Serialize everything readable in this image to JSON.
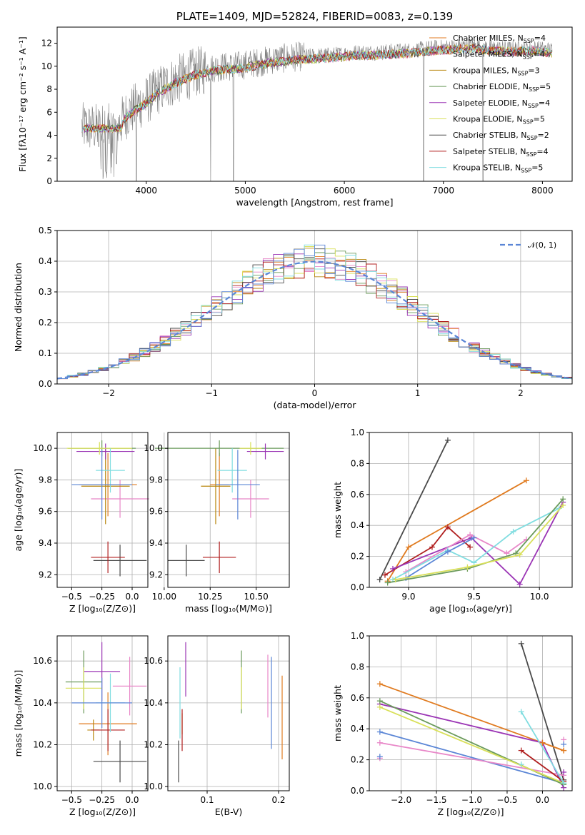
{
  "colors": {
    "Chabrier MILES": "#e07b20",
    "Salpeter MILES": "#e887c8",
    "Kroupa MILES": "#b8860b",
    "Chabrier ELODIE": "#6a9a5a",
    "Salpeter ELODIE": "#9b35b5",
    "Kroupa ELODIE": "#d9e05a",
    "Chabrier STELIB": "#4a4a4a",
    "Salpeter STELIB": "#b01e1e",
    "Kroupa STELIB": "#80dde0",
    "extra_blue": "#5b86d6",
    "observed": "#808080",
    "normal": "#5b86d6"
  },
  "chart_data": [
    {
      "id": "spectrum",
      "type": "line",
      "title": "PLATE=1409, MJD=52824, FIBERID=0083, z=0.139",
      "xlabel": "wavelength [Angstrom, rest frame]",
      "ylabel": "Flux [fλ10⁻¹⁷ erg cm⁻² s⁻¹ A⁻¹]",
      "xlim": [
        3100,
        8300
      ],
      "ylim": [
        0,
        13.4
      ],
      "xticks": [
        4000,
        5000,
        6000,
        7000,
        8000
      ],
      "yticks": [
        0,
        2,
        4,
        6,
        8,
        10,
        12
      ],
      "legend": [
        {
          "name": "Chabrier MILES",
          "n": "4"
        },
        {
          "name": "Salpeter MILES",
          "n": "4"
        },
        {
          "name": "Kroupa MILES",
          "n": "3"
        },
        {
          "name": "Chabrier ELODIE",
          "n": "5"
        },
        {
          "name": "Salpeter ELODIE",
          "n": "4"
        },
        {
          "name": "Kroupa ELODIE",
          "n": "5"
        },
        {
          "name": "Chabrier STELIB",
          "n": "2"
        },
        {
          "name": "Salpeter STELIB",
          "n": "4"
        },
        {
          "name": "Kroupa STELIB",
          "n": "5"
        }
      ],
      "legend_placement": "right",
      "continuum": [
        [
          3350,
          4.7
        ],
        [
          3550,
          4.6
        ],
        [
          3700,
          4.6
        ],
        [
          3800,
          5.8
        ],
        [
          3900,
          6.5
        ],
        [
          4000,
          7.0
        ],
        [
          4100,
          7.8
        ],
        [
          4300,
          8.8
        ],
        [
          4500,
          9.5
        ],
        [
          4700,
          9.9
        ],
        [
          4900,
          10.0
        ],
        [
          5100,
          10.3
        ],
        [
          5300,
          10.6
        ],
        [
          5500,
          10.8
        ],
        [
          5700,
          10.9
        ],
        [
          5900,
          11.0
        ],
        [
          6100,
          11.2
        ],
        [
          6300,
          11.2
        ],
        [
          6500,
          11.3
        ],
        [
          6700,
          11.4
        ],
        [
          6900,
          11.6
        ],
        [
          7100,
          11.7
        ],
        [
          7300,
          11.8
        ],
        [
          7500,
          11.6
        ],
        [
          7700,
          11.5
        ],
        [
          7900,
          11.6
        ],
        [
          8100,
          11.4
        ]
      ],
      "absorption_lines": [
        [
          3520,
          3.0
        ],
        [
          3600,
          0.3
        ],
        [
          3700,
          1.5
        ],
        [
          3900,
          0.0
        ],
        [
          4650,
          0.0
        ],
        [
          4880,
          0.0
        ],
        [
          6800,
          0.0
        ],
        [
          7400,
          0.0
        ]
      ]
    },
    {
      "id": "residuals",
      "type": "histogram",
      "xlabel": "(data-model)/error",
      "ylabel": "Normed distribution",
      "xlim": [
        -2.5,
        2.5
      ],
      "ylim": [
        0,
        0.5
      ],
      "xticks": [
        -2,
        -1,
        0,
        1,
        2
      ],
      "yticks": [
        0.0,
        0.1,
        0.2,
        0.3,
        0.4,
        0.5
      ],
      "legend": "𝒩(0, 1)",
      "legend_placement": "top-right",
      "bin_width": 0.1
    },
    {
      "id": "age_vs_Z",
      "type": "errorbar",
      "xlabel": "Z [log₁₀(Z/Z⊙)]",
      "ylabel": "age  [log₁₀(age/yr)]",
      "xlim": [
        -0.62,
        0.13
      ],
      "ylim": [
        9.12,
        10.1
      ],
      "xticks": [
        -0.5,
        -0.25,
        0.0
      ],
      "yticks": [
        9.2,
        9.4,
        9.6,
        9.8,
        10.0
      ],
      "points": [
        {
          "c": "Chabrier MILES",
          "x": -0.2,
          "xe": 0.24,
          "y": 9.77,
          "ye": 0.2
        },
        {
          "c": "Salpeter MILES",
          "x": -0.1,
          "xe": 0.24,
          "y": 9.68,
          "ye": 0.12
        },
        {
          "c": "Kroupa MILES",
          "x": -0.22,
          "xe": 0.2,
          "y": 9.76,
          "ye": 0.24
        },
        {
          "c": "Chabrier ELODIE",
          "x": -0.25,
          "xe": 0.28,
          "y": 10.0,
          "ye": 0.05
        },
        {
          "c": "Salpeter ELODIE",
          "x": -0.22,
          "xe": 0.24,
          "y": 9.98,
          "ye": 0.05
        },
        {
          "c": "Kroupa ELODIE",
          "x": -0.27,
          "xe": 0.27,
          "y": 10.0,
          "ye": 0.04
        },
        {
          "c": "Chabrier STELIB",
          "x": -0.1,
          "xe": 0.22,
          "y": 9.29,
          "ye": 0.1
        },
        {
          "c": "Salpeter STELIB",
          "x": -0.2,
          "xe": 0.14,
          "y": 9.31,
          "ye": 0.1
        },
        {
          "c": "Kroupa STELIB",
          "x": -0.18,
          "xe": 0.12,
          "y": 9.86,
          "ye": 0.14
        },
        {
          "c": "extra_blue",
          "x": -0.25,
          "xe": 0.25,
          "y": 9.77,
          "ye": 0.22
        }
      ]
    },
    {
      "id": "age_vs_mass",
      "type": "errorbar",
      "xlabel": "mass [log₁₀(M/M⊙)]",
      "ylabel": "",
      "xlim": [
        10.02,
        10.68
      ],
      "ylim": [
        9.12,
        10.1
      ],
      "xticks": [
        10.0,
        10.25,
        10.5
      ],
      "yticks": [
        9.2,
        9.4,
        9.6,
        9.8,
        10.0
      ],
      "points": [
        {
          "c": "Chabrier MILES",
          "x": 10.3,
          "xe": 0.05,
          "y": 9.77,
          "ye": 0.2
        },
        {
          "c": "Salpeter MILES",
          "x": 10.47,
          "xe": 0.1,
          "y": 9.68,
          "ye": 0.12
        },
        {
          "c": "Kroupa MILES",
          "x": 10.28,
          "xe": 0.08,
          "y": 9.76,
          "ye": 0.24
        },
        {
          "c": "Chabrier ELODIE",
          "x": 10.3,
          "xe": 0.35,
          "y": 10.0,
          "ye": 0.05
        },
        {
          "c": "Salpeter ELODIE",
          "x": 10.55,
          "xe": 0.1,
          "y": 9.98,
          "ye": 0.05
        },
        {
          "c": "Kroupa ELODIE",
          "x": 10.47,
          "xe": 0.06,
          "y": 10.0,
          "ye": 0.04
        },
        {
          "c": "Chabrier STELIB",
          "x": 10.12,
          "xe": 0.1,
          "y": 9.29,
          "ye": 0.1
        },
        {
          "c": "Salpeter STELIB",
          "x": 10.3,
          "xe": 0.09,
          "y": 9.31,
          "ye": 0.1
        },
        {
          "c": "Kroupa STELIB",
          "x": 10.37,
          "xe": 0.08,
          "y": 9.86,
          "ye": 0.14
        },
        {
          "c": "extra_blue",
          "x": 10.4,
          "xe": 0.12,
          "y": 9.77,
          "ye": 0.22
        }
      ]
    },
    {
      "id": "weight_vs_age",
      "type": "line",
      "xlabel": "age  [log₁₀(age/yr)]",
      "ylabel": "mass weight",
      "xlim": [
        8.7,
        10.25
      ],
      "ylim": [
        0,
        1.0
      ],
      "xticks": [
        9.0,
        9.5,
        10.0
      ],
      "yticks": [
        0.0,
        0.2,
        0.4,
        0.6,
        0.8,
        1.0
      ],
      "series": [
        {
          "c": "Chabrier STELIB",
          "x": [
            8.78,
            9.3
          ],
          "y": [
            0.05,
            0.95
          ]
        },
        {
          "c": "Chabrier MILES",
          "x": [
            8.84,
            9.0,
            9.9
          ],
          "y": [
            0.04,
            0.26,
            0.69
          ]
        },
        {
          "c": "Salpeter STELIB",
          "x": [
            8.82,
            9.18,
            9.3,
            9.47
          ],
          "y": [
            0.08,
            0.26,
            0.39,
            0.26
          ]
        },
        {
          "c": "Salpeter ELODIE",
          "x": [
            8.88,
            9.48,
            9.85,
            10.18
          ],
          "y": [
            0.12,
            0.32,
            0.02,
            0.55
          ]
        },
        {
          "c": "Salpeter MILES",
          "x": [
            8.98,
            9.47,
            9.75,
            9.9
          ],
          "y": [
            0.1,
            0.34,
            0.22,
            0.31
          ]
        },
        {
          "c": "Kroupa STELIB",
          "x": [
            8.88,
            9.3,
            9.5,
            9.8,
            10.15
          ],
          "y": [
            0.05,
            0.24,
            0.16,
            0.36,
            0.51
          ]
        },
        {
          "c": "extra_blue",
          "x": [
            8.98,
            9.3,
            9.5
          ],
          "y": [
            0.06,
            0.23,
            0.32
          ]
        },
        {
          "c": "Chabrier ELODIE",
          "x": [
            8.84,
            9.45,
            9.82,
            10.18
          ],
          "y": [
            0.03,
            0.12,
            0.22,
            0.57
          ]
        },
        {
          "c": "Kroupa ELODIE",
          "x": [
            8.9,
            9.45,
            9.85,
            10.18
          ],
          "y": [
            0.05,
            0.13,
            0.21,
            0.53
          ]
        }
      ]
    },
    {
      "id": "mass_vs_Z",
      "type": "errorbar",
      "xlabel": "Z [log₁₀(Z/Z⊙)]",
      "ylabel": "mass [log₁₀(M/M⊙)]",
      "xlim": [
        -0.62,
        0.13
      ],
      "ylim": [
        9.98,
        10.72
      ],
      "xticks": [
        -0.5,
        -0.25,
        0.0
      ],
      "yticks": [
        10.0,
        10.2,
        10.4,
        10.6
      ],
      "points": [
        {
          "c": "Chabrier MILES",
          "x": -0.2,
          "xe": 0.24,
          "y": 10.3,
          "ye": 0.15
        },
        {
          "c": "Salpeter MILES",
          "x": -0.02,
          "xe": 0.14,
          "y": 10.48,
          "ye": 0.14
        },
        {
          "c": "Kroupa MILES",
          "x": -0.32,
          "xe": 0.05,
          "y": 10.27,
          "ye": 0.05
        },
        {
          "c": "Chabrier ELODIE",
          "x": -0.4,
          "xe": 0.15,
          "y": 10.5,
          "ye": 0.15
        },
        {
          "c": "Salpeter ELODIE",
          "x": -0.25,
          "xe": 0.15,
          "y": 10.55,
          "ye": 0.14
        },
        {
          "c": "Kroupa ELODIE",
          "x": -0.4,
          "xe": 0.15,
          "y": 10.47,
          "ye": 0.1
        },
        {
          "c": "Chabrier STELIB",
          "x": -0.1,
          "xe": 0.22,
          "y": 10.12,
          "ye": 0.1
        },
        {
          "c": "Salpeter STELIB",
          "x": -0.2,
          "xe": 0.14,
          "y": 10.27,
          "ye": 0.1
        },
        {
          "c": "Kroupa STELIB",
          "x": -0.18,
          "xe": 0.12,
          "y": 10.4,
          "ye": 0.14
        },
        {
          "c": "extra_blue",
          "x": -0.25,
          "xe": 0.25,
          "y": 10.4,
          "ye": 0.12
        }
      ]
    },
    {
      "id": "mass_vs_ebv",
      "type": "errorbar",
      "xlabel": "E(B-V)",
      "ylabel": "",
      "xlim": [
        0.045,
        0.215
      ],
      "ylim": [
        9.98,
        10.72
      ],
      "xticks": [
        0.1,
        0.2
      ],
      "yticks": [
        10.0,
        10.2,
        10.4,
        10.6
      ],
      "points": [
        {
          "c": "Chabrier MILES",
          "x": 0.205,
          "y": 10.33,
          "ye": 0.2
        },
        {
          "c": "Salpeter MILES",
          "x": 0.185,
          "y": 10.48,
          "ye": 0.15
        },
        {
          "c": "Kroupa MILES",
          "x": 0.065,
          "y": 10.3,
          "ye": 0.05
        },
        {
          "c": "Chabrier ELODIE",
          "x": 0.148,
          "y": 10.5,
          "ye": 0.15
        },
        {
          "c": "Salpeter ELODIE",
          "x": 0.07,
          "y": 10.56,
          "ye": 0.13
        },
        {
          "c": "Kroupa ELODIE",
          "x": 0.148,
          "y": 10.47,
          "ye": 0.1
        },
        {
          "c": "Chabrier STELIB",
          "x": 0.06,
          "y": 10.12,
          "ye": 0.1
        },
        {
          "c": "Salpeter STELIB",
          "x": 0.065,
          "y": 10.27,
          "ye": 0.1
        },
        {
          "c": "Kroupa STELIB",
          "x": 0.062,
          "y": 10.4,
          "ye": 0.17
        },
        {
          "c": "extra_blue",
          "x": 0.19,
          "y": 10.4,
          "ye": 0.22
        }
      ]
    },
    {
      "id": "weight_vs_Z",
      "type": "line",
      "xlabel": "Z [log₁₀(Z/Z⊙)]",
      "ylabel": "mass weight",
      "xlim": [
        -2.45,
        0.42
      ],
      "ylim": [
        0,
        1.0
      ],
      "xticks": [
        -2.0,
        -1.5,
        -1.0,
        -0.5,
        0.0
      ],
      "yticks": [
        0.0,
        0.2,
        0.4,
        0.6,
        0.8,
        1.0
      ],
      "series": [
        {
          "c": "Chabrier STELIB",
          "x": [
            -0.3,
            0.3
          ],
          "y": [
            0.95,
            0.07
          ]
        },
        {
          "c": "Chabrier MILES",
          "x": [
            -2.3,
            0.0,
            0.3
          ],
          "y": [
            0.69,
            0.31,
            0.26
          ]
        },
        {
          "c": "Salpeter ELODIE",
          "x": [
            -2.3,
            0.0,
            0.3
          ],
          "y": [
            0.56,
            0.31,
            0.02
          ]
        },
        {
          "c": "extra_blue",
          "x": [
            -2.3,
            0.3
          ],
          "y": [
            0.38,
            0.05
          ]
        },
        {
          "c": "Salpeter MILES",
          "x": [
            -2.3,
            0.3
          ],
          "y": [
            0.31,
            0.1
          ]
        },
        {
          "c": "Chabrier ELODIE",
          "x": [
            -2.3,
            0.3
          ],
          "y": [
            0.58,
            0.04
          ]
        },
        {
          "c": "Kroupa ELODIE",
          "x": [
            -2.3,
            0.3
          ],
          "y": [
            0.54,
            0.05
          ]
        },
        {
          "c": "Salpeter STELIB",
          "x": [
            -0.3,
            0.3
          ],
          "y": [
            0.26,
            0.06
          ]
        },
        {
          "c": "Kroupa STELIB",
          "x": [
            -0.3,
            0.3
          ],
          "y": [
            0.51,
            0.05
          ]
        },
        {
          "c": "Chabrier MILES",
          "x": [
            0.0,
            0.3
          ],
          "y": [
            0.31,
            0.26
          ]
        }
      ],
      "markers_at": [
        {
          "c": "Salpeter MILES",
          "x": -2.3,
          "y": 0.21
        },
        {
          "c": "extra_blue",
          "x": -2.3,
          "y": 0.22
        },
        {
          "c": "Kroupa STELIB",
          "x": -0.3,
          "y": 0.17
        },
        {
          "c": "Salpeter MILES",
          "x": 0.3,
          "y": 0.33
        },
        {
          "c": "extra_blue",
          "x": 0.3,
          "y": 0.3
        },
        {
          "c": "Salpeter ELODIE",
          "x": 0.3,
          "y": 0.12
        }
      ]
    }
  ]
}
